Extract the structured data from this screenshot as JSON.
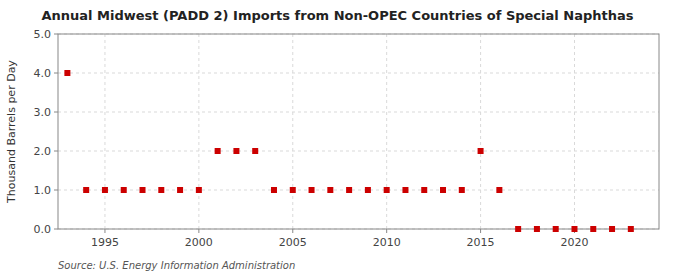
{
  "chart_data": {
    "type": "scatter",
    "title": "Annual Midwest (PADD 2) Imports from Non-OPEC Countries of Special Naphthas",
    "y_label": "Thousand Barrels per Day",
    "annotations": [
      "Source: U.S. Energy Information Administration"
    ],
    "x": [
      1993,
      1994,
      1995,
      1996,
      1997,
      1998,
      1999,
      2000,
      2001,
      2002,
      2003,
      2004,
      2005,
      2006,
      2007,
      2008,
      2009,
      2010,
      2011,
      2012,
      2013,
      2014,
      2015,
      2016,
      2017,
      2018,
      2019,
      2020,
      2021,
      2022,
      2023
    ],
    "values": [
      4.0,
      1.0,
      1.0,
      1.0,
      1.0,
      1.0,
      1.0,
      1.0,
      2.0,
      2.0,
      2.0,
      1.0,
      1.0,
      1.0,
      1.0,
      1.0,
      1.0,
      1.0,
      1.0,
      1.0,
      1.0,
      1.0,
      2.0,
      1.0,
      0.0,
      0.0,
      0.0,
      0.0,
      0.0,
      0.0,
      0.0
    ],
    "color": "#cc0000",
    "marker": "square",
    "line_style": "none",
    "xlim": [
      1992.5,
      2024.5
    ],
    "xticks": [
      1995,
      2000,
      2005,
      2010,
      2015,
      2020
    ],
    "ylim": [
      0.0,
      5.0
    ],
    "yticks": [
      {
        "value": 0.0,
        "label": "0.0"
      },
      {
        "value": 1.0,
        "label": "1.0"
      },
      {
        "value": 2.0,
        "label": "2.0"
      },
      {
        "value": 3.0,
        "label": "3.0"
      },
      {
        "value": 4.0,
        "label": "4.0"
      },
      {
        "value": 5.0,
        "label": "5.0"
      }
    ],
    "grid": true
  }
}
